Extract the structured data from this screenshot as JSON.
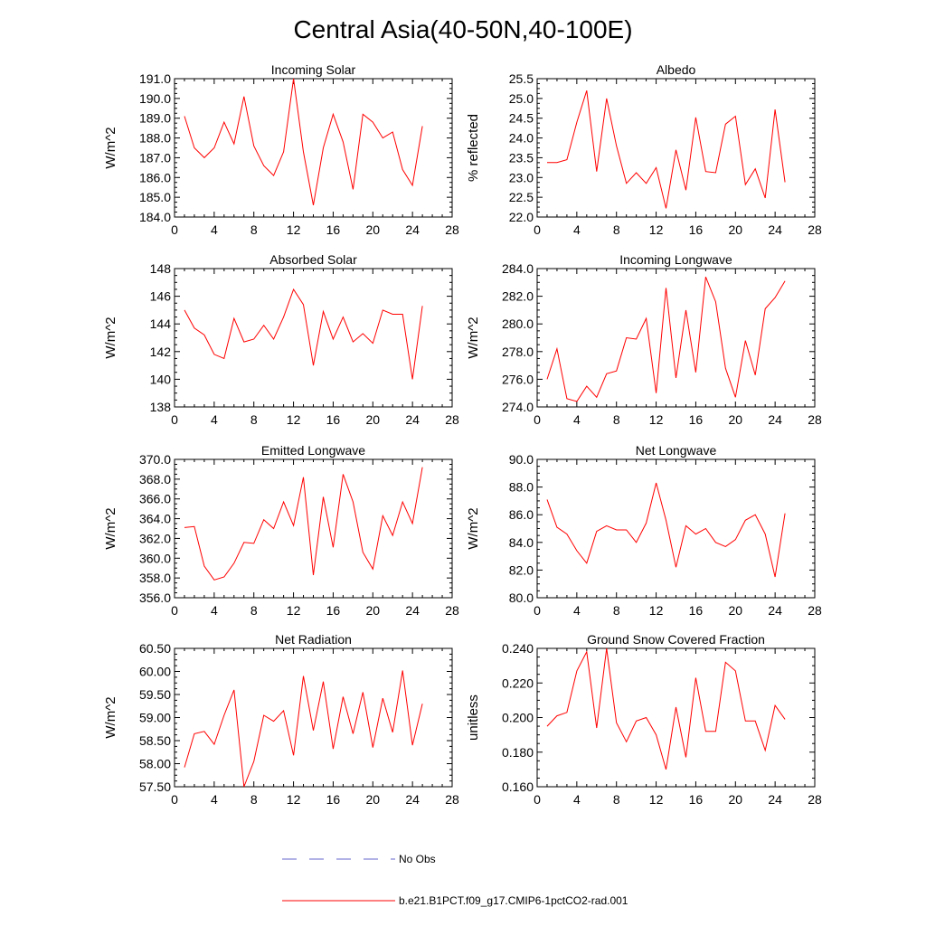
{
  "title": "Central Asia(40-50N,40-100E)",
  "legend": [
    {
      "label": "No Obs",
      "color": "#6666cc",
      "dash": "dashed"
    },
    {
      "label": "b.e21.B1PCT.f09_g17.CMIP6-1pctCO2-rad.001",
      "color": "#ff0000",
      "dash": "solid"
    }
  ],
  "chart_data": [
    {
      "type": "line",
      "title": "Incoming Solar",
      "ylabel": "W/m^2",
      "xlim": [
        0,
        28
      ],
      "ylim": [
        184.0,
        191.0
      ],
      "yticks": [
        "184.0",
        "185.0",
        "186.0",
        "187.0",
        "188.0",
        "189.0",
        "190.0",
        "191.0"
      ],
      "xticks": [
        "0",
        "4",
        "8",
        "12",
        "16",
        "20",
        "24",
        "28"
      ],
      "x": [
        1,
        2,
        3,
        4,
        5,
        6,
        7,
        8,
        9,
        10,
        11,
        12,
        13,
        14,
        15,
        16,
        17,
        18,
        19,
        20,
        21,
        22,
        23,
        24,
        25
      ],
      "series": [
        {
          "color": "#ff0000",
          "values": [
            189.1,
            187.5,
            187.0,
            187.5,
            188.8,
            187.7,
            190.1,
            187.6,
            186.6,
            186.1,
            187.3,
            191.0,
            187.3,
            184.6,
            187.5,
            189.2,
            187.8,
            185.4,
            189.2,
            188.8,
            188.0,
            188.3,
            186.4,
            185.6,
            188.6
          ]
        }
      ]
    },
    {
      "type": "line",
      "title": "Albedo",
      "ylabel": "% reflected",
      "xlim": [
        0,
        28
      ],
      "ylim": [
        22.0,
        25.5
      ],
      "yticks": [
        "22.0",
        "22.5",
        "23.0",
        "23.5",
        "24.0",
        "24.5",
        "25.0",
        "25.5"
      ],
      "xticks": [
        "0",
        "4",
        "8",
        "12",
        "16",
        "20",
        "24",
        "28"
      ],
      "x": [
        1,
        2,
        3,
        4,
        5,
        6,
        7,
        8,
        9,
        10,
        11,
        12,
        13,
        14,
        15,
        16,
        17,
        18,
        19,
        20,
        21,
        22,
        23,
        24,
        25
      ],
      "series": [
        {
          "color": "#ff0000",
          "values": [
            23.38,
            23.38,
            23.45,
            24.4,
            25.2,
            23.15,
            25.0,
            23.8,
            22.85,
            23.12,
            22.85,
            23.25,
            22.22,
            23.7,
            22.68,
            24.52,
            23.15,
            23.12,
            24.35,
            24.55,
            22.82,
            23.22,
            22.48,
            24.72,
            22.88
          ]
        }
      ]
    },
    {
      "type": "line",
      "title": "Absorbed Solar",
      "ylabel": "W/m^2",
      "xlim": [
        0,
        28
      ],
      "ylim": [
        138,
        148
      ],
      "yticks": [
        "138",
        "140",
        "142",
        "144",
        "146",
        "148"
      ],
      "xticks": [
        "0",
        "4",
        "8",
        "12",
        "16",
        "20",
        "24",
        "28"
      ],
      "x": [
        1,
        2,
        3,
        4,
        5,
        6,
        7,
        8,
        9,
        10,
        11,
        12,
        13,
        14,
        15,
        16,
        17,
        18,
        19,
        20,
        21,
        22,
        23,
        24,
        25
      ],
      "series": [
        {
          "color": "#ff0000",
          "values": [
            145.0,
            143.7,
            143.2,
            141.8,
            141.5,
            144.4,
            142.7,
            142.9,
            143.9,
            142.9,
            144.5,
            146.5,
            145.4,
            141.0,
            144.9,
            142.9,
            144.5,
            142.7,
            143.3,
            142.6,
            145.0,
            144.7,
            144.7,
            140.0,
            145.3
          ]
        }
      ]
    },
    {
      "type": "line",
      "title": "Incoming Longwave",
      "ylabel": "W/m^2",
      "xlim": [
        0,
        28
      ],
      "ylim": [
        274.0,
        284.0
      ],
      "yticks": [
        "274.0",
        "276.0",
        "278.0",
        "280.0",
        "282.0",
        "284.0"
      ],
      "xticks": [
        "0",
        "4",
        "8",
        "12",
        "16",
        "20",
        "24",
        "28"
      ],
      "x": [
        1,
        2,
        3,
        4,
        5,
        6,
        7,
        8,
        9,
        10,
        11,
        12,
        13,
        14,
        15,
        16,
        17,
        18,
        19,
        20,
        21,
        22,
        23,
        24,
        25
      ],
      "series": [
        {
          "color": "#ff0000",
          "values": [
            276.0,
            278.2,
            274.6,
            274.4,
            275.5,
            274.7,
            276.4,
            276.6,
            279.0,
            278.9,
            280.4,
            275.0,
            282.6,
            276.1,
            281.0,
            276.5,
            283.4,
            281.6,
            276.8,
            274.7,
            278.8,
            276.3,
            281.1,
            281.9,
            283.1
          ]
        }
      ]
    },
    {
      "type": "line",
      "title": "Emitted Longwave",
      "ylabel": "W/m^2",
      "xlim": [
        0,
        28
      ],
      "ylim": [
        356.0,
        370.0
      ],
      "yticks": [
        "356.0",
        "358.0",
        "360.0",
        "362.0",
        "364.0",
        "366.0",
        "368.0",
        "370.0"
      ],
      "xticks": [
        "0",
        "4",
        "8",
        "12",
        "16",
        "20",
        "24",
        "28"
      ],
      "x": [
        1,
        2,
        3,
        4,
        5,
        6,
        7,
        8,
        9,
        10,
        11,
        12,
        13,
        14,
        15,
        16,
        17,
        18,
        19,
        20,
        21,
        22,
        23,
        24,
        25
      ],
      "series": [
        {
          "color": "#ff0000",
          "values": [
            363.1,
            363.2,
            359.2,
            357.8,
            358.1,
            359.5,
            361.6,
            361.5,
            363.9,
            363.0,
            365.7,
            363.3,
            368.2,
            358.3,
            366.2,
            361.1,
            368.5,
            365.7,
            360.6,
            358.9,
            364.3,
            362.3,
            365.7,
            363.5,
            369.2
          ]
        }
      ]
    },
    {
      "type": "line",
      "title": "Net Longwave",
      "ylabel": "W/m^2",
      "xlim": [
        0,
        28
      ],
      "ylim": [
        80.0,
        90.0
      ],
      "yticks": [
        "80.0",
        "82.0",
        "84.0",
        "86.0",
        "88.0",
        "90.0"
      ],
      "xticks": [
        "0",
        "4",
        "8",
        "12",
        "16",
        "20",
        "24",
        "28"
      ],
      "x": [
        1,
        2,
        3,
        4,
        5,
        6,
        7,
        8,
        9,
        10,
        11,
        12,
        13,
        14,
        15,
        16,
        17,
        18,
        19,
        20,
        21,
        22,
        23,
        24,
        25
      ],
      "series": [
        {
          "color": "#ff0000",
          "values": [
            87.1,
            85.1,
            84.6,
            83.4,
            82.5,
            84.8,
            85.2,
            84.9,
            84.9,
            84.0,
            85.4,
            88.3,
            85.6,
            82.2,
            85.2,
            84.6,
            85.0,
            84.0,
            83.7,
            84.2,
            85.6,
            86.0,
            84.6,
            81.5,
            86.1
          ]
        }
      ]
    },
    {
      "type": "line",
      "title": "Net Radiation",
      "ylabel": "W/m^2",
      "xlim": [
        0,
        28
      ],
      "ylim": [
        57.5,
        60.5
      ],
      "yticks": [
        "57.50",
        "58.00",
        "58.50",
        "59.00",
        "59.50",
        "60.00",
        "60.50"
      ],
      "xticks": [
        "0",
        "4",
        "8",
        "12",
        "16",
        "20",
        "24",
        "28"
      ],
      "x": [
        1,
        2,
        3,
        4,
        5,
        6,
        7,
        8,
        9,
        10,
        11,
        12,
        13,
        14,
        15,
        16,
        17,
        18,
        19,
        20,
        21,
        22,
        23,
        24,
        25
      ],
      "series": [
        {
          "color": "#ff0000",
          "values": [
            57.92,
            58.65,
            58.7,
            58.42,
            59.05,
            59.6,
            57.5,
            58.05,
            59.05,
            58.92,
            59.15,
            58.18,
            59.9,
            58.72,
            59.78,
            58.32,
            59.45,
            58.65,
            59.55,
            58.35,
            59.42,
            58.68,
            60.02,
            58.4,
            59.3
          ]
        }
      ]
    },
    {
      "type": "line",
      "title": "Ground Snow Covered Fraction",
      "ylabel": "unitless",
      "xlim": [
        0,
        28
      ],
      "ylim": [
        0.16,
        0.24
      ],
      "yticks": [
        "0.160",
        "0.180",
        "0.200",
        "0.220",
        "0.240"
      ],
      "xticks": [
        "0",
        "4",
        "8",
        "12",
        "16",
        "20",
        "24",
        "28"
      ],
      "x": [
        1,
        2,
        3,
        4,
        5,
        6,
        7,
        8,
        9,
        10,
        11,
        12,
        13,
        14,
        15,
        16,
        17,
        18,
        19,
        20,
        21,
        22,
        23,
        24,
        25
      ],
      "series": [
        {
          "color": "#ff0000",
          "values": [
            0.195,
            0.201,
            0.203,
            0.227,
            0.238,
            0.194,
            0.24,
            0.197,
            0.186,
            0.198,
            0.2,
            0.19,
            0.17,
            0.206,
            0.177,
            0.223,
            0.192,
            0.192,
            0.232,
            0.227,
            0.198,
            0.198,
            0.181,
            0.207,
            0.199
          ]
        }
      ]
    }
  ]
}
